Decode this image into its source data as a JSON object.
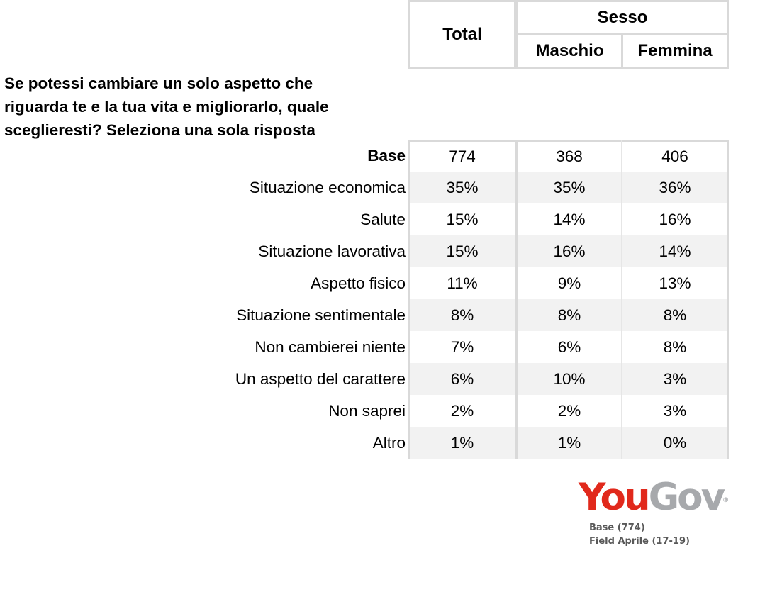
{
  "question": "Se potessi cambiare un solo aspetto che riguarda te e la tua vita e migliorarlo, quale sceglieresti? Seleziona una sola risposta",
  "header": {
    "total": "Total",
    "group": "Sesso",
    "male": "Maschio",
    "female": "Femmina"
  },
  "chart_data": {
    "type": "table",
    "title": "Se potessi cambiare un solo aspetto che riguarda te e la tua vita e migliorarlo, quale sceglieresti? Seleziona una sola risposta",
    "columns": [
      "Total",
      "Maschio",
      "Femmina"
    ],
    "column_group": "Sesso",
    "rows": [
      {
        "label": "Base",
        "total": "774",
        "male": "368",
        "female": "406"
      },
      {
        "label": "Situazione economica",
        "total": "35%",
        "male": "35%",
        "female": "36%"
      },
      {
        "label": "Salute",
        "total": "15%",
        "male": "14%",
        "female": "16%"
      },
      {
        "label": "Situazione lavorativa",
        "total": "15%",
        "male": "16%",
        "female": "14%"
      },
      {
        "label": "Aspetto fisico",
        "total": "11%",
        "male": "9%",
        "female": "13%"
      },
      {
        "label": "Situazione sentimentale",
        "total": "8%",
        "male": "8%",
        "female": "8%"
      },
      {
        "label": "Non cambierei niente",
        "total": "7%",
        "male": "6%",
        "female": "8%"
      },
      {
        "label": "Un aspetto del carattere",
        "total": "6%",
        "male": "10%",
        "female": "3%"
      },
      {
        "label": "Non saprei",
        "total": "2%",
        "male": "2%",
        "female": "3%"
      },
      {
        "label": "Altro",
        "total": "1%",
        "male": "1%",
        "female": "0%"
      }
    ]
  },
  "logo": {
    "you": "You",
    "gov": "Gov",
    "reg": "®"
  },
  "footer": {
    "base": "Base (774)",
    "field": "Field Aprile (17-19)"
  },
  "colors": {
    "brand_red": "#e1291c",
    "brand_grey": "#a7a9ac",
    "row_shade": "#f2f2f2",
    "border": "#d9d9d9"
  }
}
